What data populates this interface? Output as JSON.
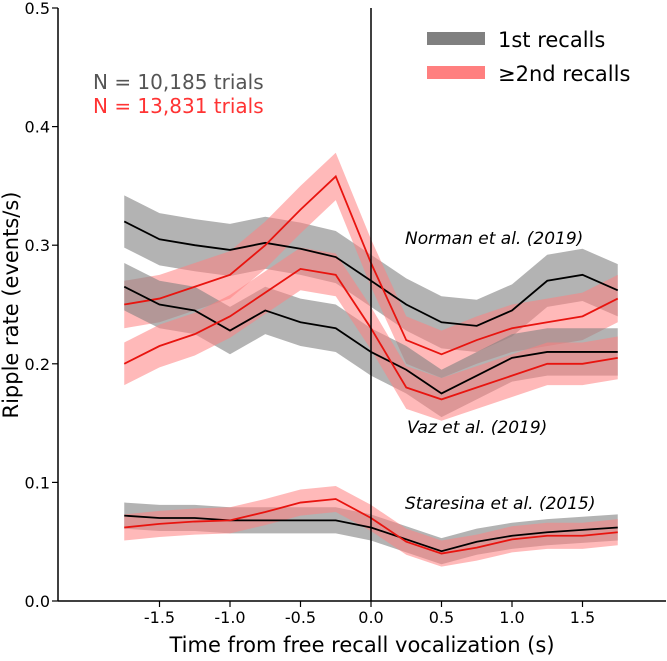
{
  "chart_data": {
    "type": "line",
    "xlabel": "Time from free recall vocalization (s)",
    "ylabel": "Ripple rate (events/s)",
    "xlim": [
      -2.2,
      2.1
    ],
    "ylim": [
      0,
      0.5
    ],
    "xticks": [
      -1.5,
      -1.0,
      -0.5,
      0.0,
      0.5,
      1.0,
      1.5
    ],
    "xtick_labels": [
      "-1.5",
      "-1.0",
      "-0.5",
      "0.0",
      "0.5",
      "1.0",
      "1.5"
    ],
    "yticks": [
      0.0,
      0.1,
      0.2,
      0.3,
      0.4,
      0.5
    ],
    "ytick_labels": [
      "0.0",
      "0.1",
      "0.2",
      "0.3",
      "0.4",
      "0.5"
    ],
    "grid": false,
    "vline_x": 0,
    "legend": {
      "placement": "top-right",
      "entries": [
        {
          "label": "1st recalls",
          "color": "#808080"
        },
        {
          "label": "≥2nd recalls",
          "color": "#ff7f7f"
        }
      ]
    },
    "annotations": {
      "n_first": "N = 10,185 trials",
      "n_second": "N = 13,831 trials",
      "norman": "Norman et al. (2019)",
      "vaz": "Vaz et al. (2019)",
      "staresina": "Staresina et al. (2015)"
    },
    "colors": {
      "first_line": "#000000",
      "first_band": "#808080",
      "second_line": "#e8140f",
      "second_band": "#ff7f7f",
      "n_first": "#555555",
      "n_second": "#ff3333"
    },
    "x": [
      -1.75,
      -1.5,
      -1.25,
      -1.0,
      -0.75,
      -0.5,
      -0.25,
      0.0,
      0.25,
      0.5,
      0.75,
      1.0,
      1.25,
      1.5,
      1.75
    ],
    "series": [
      {
        "group": "Norman et al. (2019)",
        "kind": "1st recalls",
        "ci": 0.022,
        "values": [
          0.32,
          0.305,
          0.3,
          0.296,
          0.302,
          0.297,
          0.29,
          0.27,
          0.25,
          0.235,
          0.232,
          0.245,
          0.27,
          0.275,
          0.262
        ]
      },
      {
        "group": "Norman et al. (2019)",
        "kind": "≥2nd recalls",
        "ci": 0.02,
        "values": [
          0.25,
          0.255,
          0.265,
          0.275,
          0.3,
          0.33,
          0.358,
          0.285,
          0.22,
          0.208,
          0.22,
          0.23,
          0.235,
          0.24,
          0.255
        ]
      },
      {
        "group": "Vaz et al. (2019)",
        "kind": "1st recalls",
        "ci": 0.02,
        "values": [
          0.265,
          0.25,
          0.245,
          0.228,
          0.245,
          0.235,
          0.23,
          0.21,
          0.195,
          0.175,
          0.19,
          0.205,
          0.21,
          0.21,
          0.21
        ]
      },
      {
        "group": "Vaz et al. (2019)",
        "kind": "≥2nd recalls",
        "ci": 0.018,
        "values": [
          0.2,
          0.215,
          0.225,
          0.24,
          0.26,
          0.28,
          0.275,
          0.23,
          0.18,
          0.17,
          0.18,
          0.19,
          0.2,
          0.2,
          0.205
        ]
      },
      {
        "group": "Staresina et al. (2015)",
        "kind": "1st recalls",
        "ci": 0.011,
        "values": [
          0.072,
          0.07,
          0.07,
          0.068,
          0.068,
          0.068,
          0.068,
          0.062,
          0.052,
          0.042,
          0.05,
          0.055,
          0.058,
          0.06,
          0.062
        ]
      },
      {
        "group": "Staresina et al. (2015)",
        "kind": "≥2nd recalls",
        "ci": 0.011,
        "values": [
          0.062,
          0.065,
          0.067,
          0.068,
          0.075,
          0.083,
          0.086,
          0.07,
          0.05,
          0.04,
          0.045,
          0.052,
          0.055,
          0.055,
          0.058
        ]
      }
    ]
  }
}
